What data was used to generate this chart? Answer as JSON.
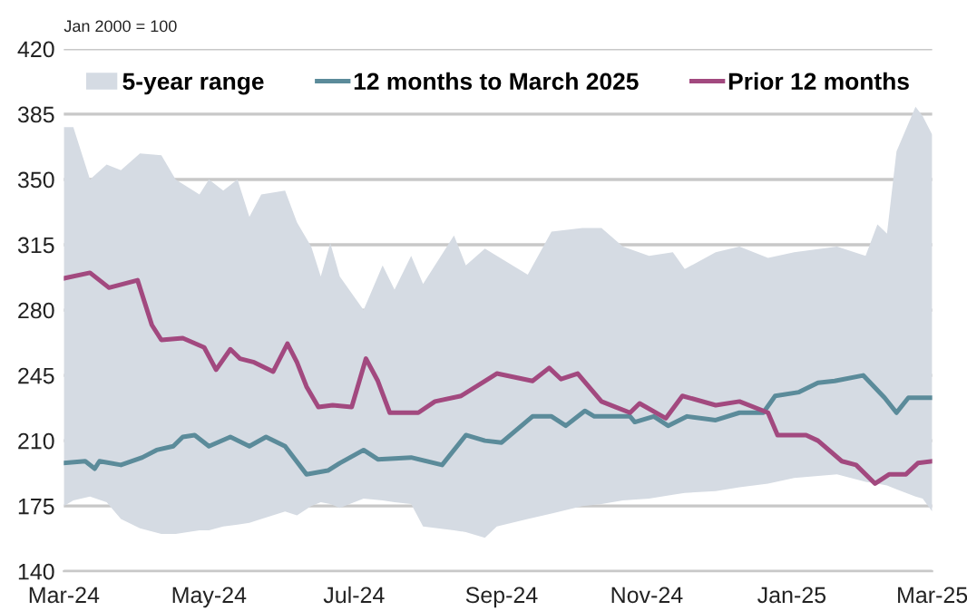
{
  "chart_data": {
    "type": "line",
    "annotations": [
      "Jan 2000 = 100"
    ],
    "xlim": [
      "2024-03-01",
      "2025-03-01"
    ],
    "xticks": [
      {
        "value": "2024-03-01",
        "label": "Mar-24"
      },
      {
        "value": "2024-05-01",
        "label": "May-24"
      },
      {
        "value": "2024-07-01",
        "label": "Jul-24"
      },
      {
        "value": "2024-09-01",
        "label": "Sep-24"
      },
      {
        "value": "2024-11-01",
        "label": "Nov-24"
      },
      {
        "value": "2025-01-01",
        "label": "Jan-25"
      },
      {
        "value": "2025-03-01",
        "label": "Mar-25"
      }
    ],
    "ylim": [
      140,
      420
    ],
    "yticks": [
      140,
      175,
      210,
      245,
      280,
      315,
      350,
      385,
      420
    ],
    "grid": "y",
    "legend": "top",
    "marker": "none",
    "line_style": "solid",
    "series": [
      {
        "name": "5-year range",
        "type": "area",
        "color": "#d5dbe3",
        "x": [
          "2024-03-01",
          "2024-03-05",
          "2024-03-12",
          "2024-03-19",
          "2024-03-25",
          "2024-04-02",
          "2024-04-11",
          "2024-04-17",
          "2024-04-27",
          "2024-05-01",
          "2024-05-07",
          "2024-05-13",
          "2024-05-18",
          "2024-05-23",
          "2024-06-02",
          "2024-06-07",
          "2024-06-13",
          "2024-06-17",
          "2024-06-21",
          "2024-06-25",
          "2024-07-05",
          "2024-07-13",
          "2024-07-18",
          "2024-07-25",
          "2024-07-30",
          "2024-08-12",
          "2024-08-17",
          "2024-08-25",
          "2024-08-30",
          "2024-09-12",
          "2024-09-22",
          "2024-10-05",
          "2024-10-13",
          "2024-10-22",
          "2024-11-02",
          "2024-11-12",
          "2024-11-17",
          "2024-11-30",
          "2024-12-10",
          "2024-12-22",
          "2025-01-02",
          "2025-01-20",
          "2025-02-01",
          "2025-02-06",
          "2025-02-10",
          "2025-02-14",
          "2025-02-22",
          "2025-02-25",
          "2025-03-01"
        ],
        "values": [
          null,
          null,
          null,
          null,
          null,
          null,
          null,
          null,
          null,
          null,
          null,
          null,
          null,
          null,
          null,
          null,
          null,
          null,
          null,
          null,
          null,
          null,
          null,
          null,
          null,
          null,
          null,
          null,
          null,
          null,
          null,
          null,
          null,
          null,
          null,
          null,
          null,
          null,
          null,
          null,
          null,
          null,
          null,
          null,
          null,
          null,
          null,
          null,
          null
        ],
        "upper": [
          378,
          378,
          350,
          358,
          355,
          364,
          363,
          350,
          342,
          350,
          344,
          350,
          330,
          342,
          344,
          327,
          314,
          298,
          316,
          298,
          280,
          304,
          291,
          309,
          294,
          320,
          304,
          313,
          309,
          299,
          322,
          324,
          324,
          314,
          309,
          311,
          302,
          311,
          314,
          308,
          311,
          314,
          309,
          326,
          321,
          365,
          389,
          384,
          374
        ],
        "lower": [
          175,
          178,
          180,
          177,
          168,
          163,
          160,
          160,
          162,
          162,
          164,
          165,
          166,
          168,
          172,
          170,
          175,
          177,
          176,
          174,
          179,
          178,
          177,
          176,
          164,
          162,
          161,
          158,
          164,
          168,
          171,
          175,
          176,
          178,
          179,
          181,
          182,
          183,
          185,
          187,
          190,
          192,
          188,
          187,
          186,
          184,
          180,
          179,
          172
        ]
      },
      {
        "name": "12 months to March 2025",
        "color": "#5b8b9a",
        "x": [
          "2024-03-01",
          "2024-03-10",
          "2024-03-14",
          "2024-03-16",
          "2024-03-25",
          "2024-04-03",
          "2024-04-09",
          "2024-04-16",
          "2024-04-20",
          "2024-04-25",
          "2024-05-01",
          "2024-05-10",
          "2024-05-18",
          "2024-05-25",
          "2024-06-02",
          "2024-06-11",
          "2024-06-20",
          "2024-06-25",
          "2024-07-05",
          "2024-07-11",
          "2024-07-25",
          "2024-08-07",
          "2024-08-17",
          "2024-08-25",
          "2024-09-01",
          "2024-09-14",
          "2024-09-22",
          "2024-09-28",
          "2024-10-06",
          "2024-10-10",
          "2024-10-25",
          "2024-10-27",
          "2024-11-04",
          "2024-11-10",
          "2024-11-18",
          "2024-11-30",
          "2024-12-10",
          "2024-12-20",
          "2024-12-25",
          "2025-01-04",
          "2025-01-12",
          "2025-01-19",
          "2025-01-31",
          "2025-02-09",
          "2025-02-14",
          "2025-02-19",
          "2025-03-01"
        ],
        "values": [
          198,
          199,
          195,
          199,
          197,
          201,
          205,
          207,
          212,
          213,
          207,
          212,
          207,
          212,
          207,
          192,
          194,
          198,
          205,
          200,
          201,
          197,
          213,
          210,
          209,
          223,
          223,
          218,
          226,
          223,
          223,
          220,
          223,
          218,
          223,
          221,
          225,
          225,
          234,
          236,
          241,
          242,
          245,
          233,
          225,
          233,
          233
        ]
      },
      {
        "name": "Prior 12 months",
        "color": "#a2497f",
        "x": [
          "2024-03-01",
          "2024-03-12",
          "2024-03-20",
          "2024-04-01",
          "2024-04-07",
          "2024-04-11",
          "2024-04-20",
          "2024-04-29",
          "2024-05-04",
          "2024-05-10",
          "2024-05-14",
          "2024-05-20",
          "2024-05-28",
          "2024-06-03",
          "2024-06-07",
          "2024-06-11",
          "2024-06-16",
          "2024-06-22",
          "2024-06-30",
          "2024-07-06",
          "2024-07-11",
          "2024-07-16",
          "2024-07-28",
          "2024-08-04",
          "2024-08-15",
          "2024-08-25",
          "2024-08-30",
          "2024-09-14",
          "2024-09-21",
          "2024-09-26",
          "2024-10-03",
          "2024-10-13",
          "2024-10-19",
          "2024-10-25",
          "2024-10-29",
          "2024-11-09",
          "2024-11-16",
          "2024-11-30",
          "2024-12-10",
          "2024-12-22",
          "2024-12-26",
          "2025-01-07",
          "2025-01-12",
          "2025-01-22",
          "2025-01-28",
          "2025-02-05",
          "2025-02-11",
          "2025-02-18",
          "2025-02-23",
          "2025-03-01"
        ],
        "values": [
          297,
          300,
          292,
          296,
          272,
          264,
          265,
          260,
          248,
          259,
          254,
          252,
          247,
          262,
          252,
          239,
          228,
          229,
          228,
          254,
          242,
          225,
          225,
          231,
          234,
          242,
          246,
          242,
          249,
          243,
          246,
          231,
          228,
          225,
          230,
          222,
          234,
          229,
          231,
          225,
          213,
          213,
          210,
          199,
          197,
          187,
          192,
          192,
          198,
          199
        ]
      }
    ]
  }
}
